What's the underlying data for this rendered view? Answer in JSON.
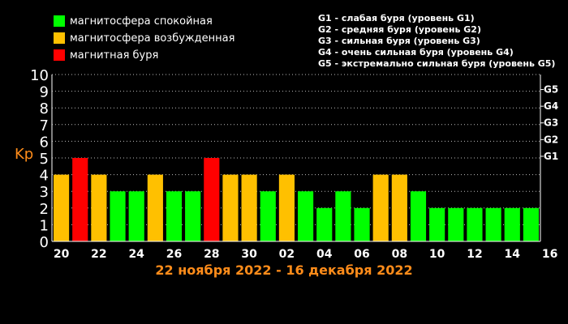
{
  "legend": [
    {
      "label": "магнитосфера спокойная",
      "color": "#00ff00"
    },
    {
      "label": "магнитосфера возбужденная",
      "color": "#ffc000"
    },
    {
      "label": "магнитная буря",
      "color": "#ff0000"
    }
  ],
  "storm_legend": [
    "G1 - слабая буря (уровень G1)",
    "G2 - средняя буря (уровень G2)",
    "G3 - сильная буря (уровень G3)",
    "G4 - очень сильная буря (уровень G4)",
    "G5 - экстремально сильная буря (уровень G5)"
  ],
  "date_range": "22 ноября 2022 - 16 декабря 2022",
  "chart_data": {
    "type": "bar",
    "title": "",
    "xlabel": "",
    "ylabel": "Kp",
    "ylim": [
      0,
      10
    ],
    "yticks": [
      0,
      1,
      2,
      3,
      4,
      5,
      6,
      7,
      8,
      9,
      10
    ],
    "right_ticks": [
      {
        "value": 5,
        "label": "G1"
      },
      {
        "value": 6,
        "label": "G2"
      },
      {
        "value": 7,
        "label": "G3"
      },
      {
        "value": 8,
        "label": "G4"
      },
      {
        "value": 9,
        "label": "G5"
      }
    ],
    "xtick_labels": [
      "20",
      "22",
      "24",
      "26",
      "28",
      "30",
      "02",
      "04",
      "06",
      "08",
      "10",
      "12",
      "14",
      "16"
    ],
    "grid": true,
    "status_colors": {
      "quiet": "#00ff00",
      "active": "#ffc000",
      "storm": "#ff0000"
    },
    "values": [
      4,
      5,
      4,
      3,
      3,
      4,
      3,
      3,
      5,
      4,
      4,
      3,
      4,
      3,
      2,
      3,
      2,
      4,
      4,
      3,
      2,
      2,
      2,
      2,
      2,
      2
    ],
    "status": [
      "active",
      "storm",
      "active",
      "quiet",
      "quiet",
      "active",
      "quiet",
      "quiet",
      "storm",
      "active",
      "active",
      "quiet",
      "active",
      "quiet",
      "quiet",
      "quiet",
      "quiet",
      "active",
      "active",
      "quiet",
      "quiet",
      "quiet",
      "quiet",
      "quiet",
      "quiet",
      "quiet"
    ]
  }
}
